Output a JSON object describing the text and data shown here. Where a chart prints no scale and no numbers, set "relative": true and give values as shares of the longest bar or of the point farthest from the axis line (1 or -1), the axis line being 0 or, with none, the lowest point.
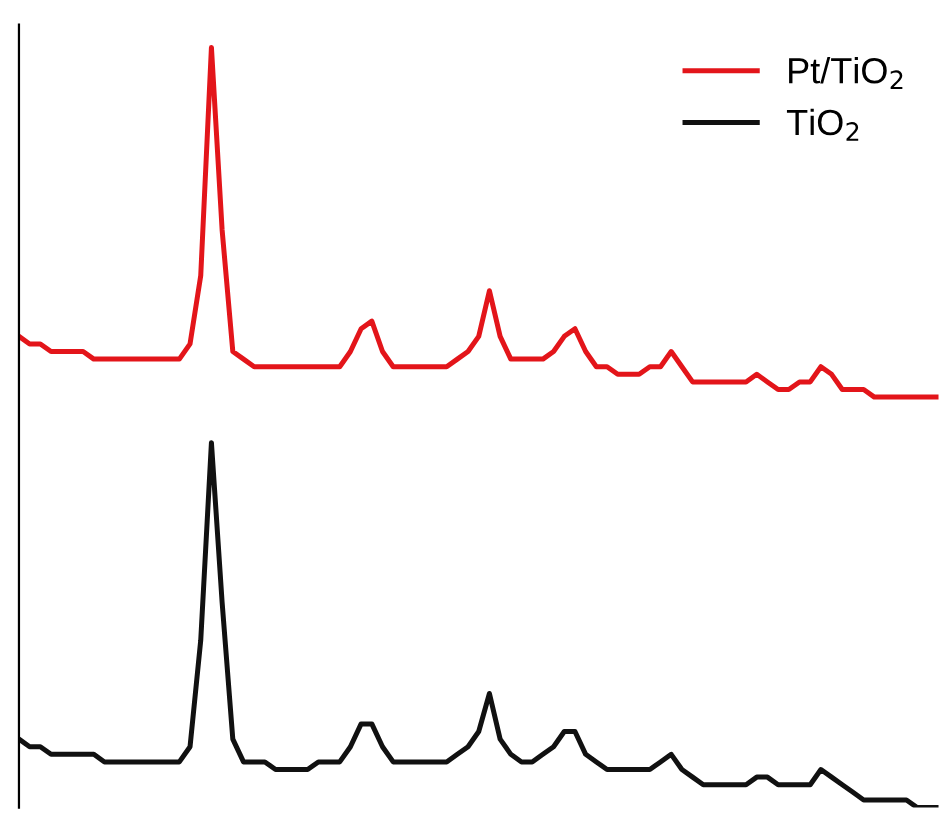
{
  "chart_data": {
    "type": "line",
    "relative": true,
    "legend": "top right",
    "marker": "none",
    "line_style": "solid",
    "categories": [
      null,
      null,
      null,
      null,
      null,
      null,
      null,
      null,
      null,
      null,
      null,
      null,
      null,
      null,
      null,
      null,
      null,
      null,
      null,
      null,
      null,
      null,
      null,
      null,
      null,
      null,
      null,
      null,
      null,
      null,
      null,
      null,
      null,
      null,
      null,
      null,
      null,
      null,
      null,
      null,
      null,
      null,
      null,
      null,
      null,
      null,
      null,
      null,
      null,
      null,
      null,
      null,
      null,
      null,
      null,
      null,
      null,
      null,
      null,
      null,
      null,
      null,
      null,
      null,
      null,
      null,
      null,
      null,
      null,
      null,
      null,
      null,
      null,
      null,
      null,
      null,
      null,
      null,
      null,
      null,
      null,
      null,
      null,
      null,
      null,
      null,
      null
    ],
    "series": [
      {
        "name": "Pt/TiO$_{2}$",
        "color": "#e3151a",
        "values": [
          0.62,
          0.61,
          0.61,
          0.6,
          0.6,
          0.6,
          0.6,
          0.59,
          0.59,
          0.59,
          0.59,
          0.59,
          0.59,
          0.59,
          0.59,
          0.59,
          0.61,
          0.7,
          1.0,
          0.76,
          0.6,
          0.59,
          0.58,
          0.58,
          0.58,
          0.58,
          0.58,
          0.58,
          0.58,
          0.58,
          0.58,
          0.6,
          0.63,
          0.64,
          0.6,
          0.58,
          0.58,
          0.58,
          0.58,
          0.58,
          0.58,
          0.59,
          0.6,
          0.62,
          0.68,
          0.62,
          0.59,
          0.59,
          0.59,
          0.59,
          0.6,
          0.62,
          0.63,
          0.6,
          0.58,
          0.58,
          0.57,
          0.57,
          0.57,
          0.58,
          0.58,
          0.6,
          0.58,
          0.56,
          0.56,
          0.56,
          0.56,
          0.56,
          0.56,
          0.57,
          0.56,
          0.55,
          0.55,
          0.56,
          0.56,
          0.58,
          0.57,
          0.55,
          0.55,
          0.55,
          0.54,
          0.54,
          0.54,
          0.54,
          0.54,
          0.54,
          0.54
        ]
      },
      {
        "name": "TiO$_{2}$",
        "color": "#111111",
        "values": [
          0.09,
          0.08,
          0.08,
          0.07,
          0.07,
          0.07,
          0.07,
          0.07,
          0.06,
          0.06,
          0.06,
          0.06,
          0.06,
          0.06,
          0.06,
          0.06,
          0.08,
          0.22,
          0.48,
          0.27,
          0.09,
          0.06,
          0.06,
          0.06,
          0.05,
          0.05,
          0.05,
          0.05,
          0.06,
          0.06,
          0.06,
          0.08,
          0.11,
          0.11,
          0.08,
          0.06,
          0.06,
          0.06,
          0.06,
          0.06,
          0.06,
          0.07,
          0.08,
          0.1,
          0.15,
          0.09,
          0.07,
          0.06,
          0.06,
          0.07,
          0.08,
          0.1,
          0.1,
          0.07,
          0.06,
          0.05,
          0.05,
          0.05,
          0.05,
          0.05,
          0.06,
          0.07,
          0.05,
          0.04,
          0.03,
          0.03,
          0.03,
          0.03,
          0.03,
          0.04,
          0.04,
          0.03,
          0.03,
          0.03,
          0.03,
          0.05,
          0.04,
          0.03,
          0.02,
          0.01,
          0.01,
          0.01,
          0.01,
          0.01,
          0.0,
          0.0,
          0.0
        ]
      }
    ]
  }
}
